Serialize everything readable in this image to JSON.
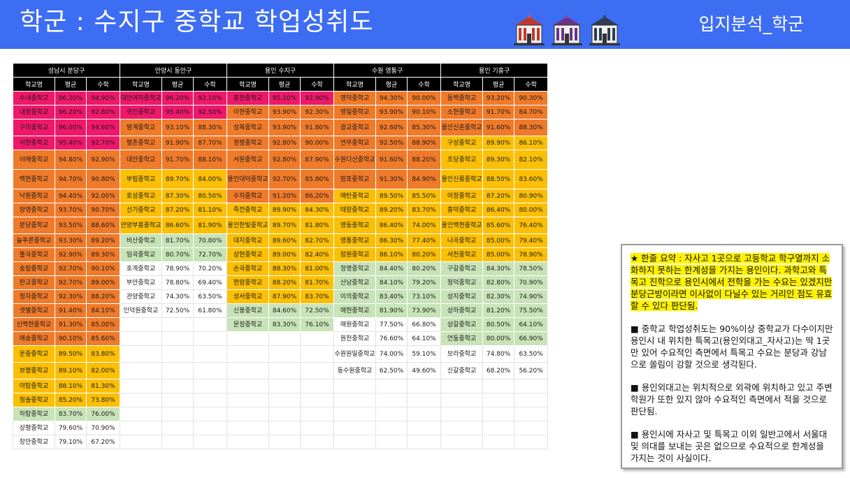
{
  "header": {
    "title": "학군 : 수지구 중학교 학업성취도",
    "subtitle": "입지분석_학군",
    "icons": [
      "school-icon-red",
      "school-icon-purple",
      "school-icon-dark"
    ]
  },
  "colors": {
    "header_bg": "#3d6df2",
    "pink": "#f0186a",
    "orange": "#ef7a2a",
    "yellow": "#fbbf05",
    "green": "#c8e3b8",
    "highlight": "#fff200"
  },
  "table": {
    "column_headers": [
      "학교명",
      "평균",
      "수학"
    ],
    "districts": [
      {
        "name": "성남시 분당구",
        "rows": [
          [
            "수내중학교",
            "96.20%",
            "94.90%",
            "pink"
          ],
          [
            "내정중학교",
            "96.20%",
            "92.80%",
            "pink"
          ],
          [
            "구미중학교",
            "96.00%",
            "94.60%",
            "pink"
          ],
          [
            "서현중학교",
            "95.40%",
            "92.70%",
            "pink"
          ],
          [
            "이매중학교",
            "94.80%",
            "92.90%",
            "org"
          ],
          [
            "백현중학교",
            "94.70%",
            "90.80%",
            "org"
          ],
          [
            "낙원중학교",
            "94.40%",
            "92.00%",
            "org"
          ],
          [
            "양영중학교",
            "93.70%",
            "90.70%",
            "org"
          ],
          [
            "분당중학교",
            "93.50%",
            "88.60%",
            "org"
          ],
          [
            "늘푸른중학교",
            "93.30%",
            "89.20%",
            "org"
          ],
          [
            "불곡중학교",
            "92.90%",
            "89.30%",
            "org"
          ],
          [
            "송림중학교",
            "92.70%",
            "90.10%",
            "org"
          ],
          [
            "판교중학교",
            "92.70%",
            "89.00%",
            "org"
          ],
          [
            "정자중학교",
            "92.30%",
            "88.20%",
            "org"
          ],
          [
            "샛별중학교",
            "91.40%",
            "84.10%",
            "org"
          ],
          [
            "신백현중학교",
            "91.30%",
            "85.00%",
            "org"
          ],
          [
            "매송중학교",
            "90.10%",
            "85.60%",
            "org"
          ],
          [
            "운중중학교",
            "89.50%",
            "83.80%",
            "yel"
          ],
          [
            "보평중학교",
            "89.10%",
            "82.00%",
            "yel"
          ],
          [
            "야탑중학교",
            "88.10%",
            "81.30%",
            "yel"
          ],
          [
            "청솔중학교",
            "85.20%",
            "73.80%",
            "yel"
          ],
          [
            "하탑중학교",
            "83.70%",
            "76.00%",
            "grn"
          ],
          [
            "상평중학교",
            "79.60%",
            "70.90%",
            "wht"
          ],
          [
            "장안중학교",
            "79.10%",
            "67.20%",
            "wht"
          ]
        ]
      },
      {
        "name": "안양시 동안구",
        "rows": [
          [
            "대안여자중학교",
            "96.20%",
            "92.10%",
            "pink"
          ],
          [
            "귀인중학교",
            "95.40%",
            "92.50%",
            "pink"
          ],
          [
            "범계중학교",
            "93.10%",
            "88.30%",
            "org"
          ],
          [
            "평촌중학교",
            "91.90%",
            "87.70%",
            "org"
          ],
          [
            "대안중학교",
            "91.70%",
            "88.10%",
            "org"
          ],
          [
            "부림중학교",
            "89.70%",
            "84.00%",
            "yel"
          ],
          [
            "호성중학교",
            "87.30%",
            "80.50%",
            "yel"
          ],
          [
            "신기중학교",
            "87.20%",
            "81.10%",
            "yel"
          ],
          [
            "안양부흥중학교",
            "86.60%",
            "81.90%",
            "yel"
          ],
          [
            "비산중학교",
            "81.70%",
            "70.80%",
            "grn"
          ],
          [
            "임곡중학교",
            "80.70%",
            "72.70%",
            "grn"
          ],
          [
            "호계중학교",
            "78.90%",
            "70.20%",
            "wht"
          ],
          [
            "부안중학교",
            "78.80%",
            "69.40%",
            "wht"
          ],
          [
            "관양중학교",
            "74.30%",
            "63.50%",
            "wht"
          ],
          [
            "인덕원중학교",
            "72.50%",
            "61.80%",
            "wht"
          ]
        ]
      },
      {
        "name": "용인 수지구",
        "rows": [
          [
            "홍천중학교",
            "95.10%",
            "92.90%",
            "pink"
          ],
          [
            "이현중학교",
            "93.90%",
            "92.30%",
            "org"
          ],
          [
            "성복중학교",
            "93.90%",
            "91.80%",
            "org"
          ],
          [
            "정평중학교",
            "92.80%",
            "90.00%",
            "org"
          ],
          [
            "서원중학교",
            "92.80%",
            "87.90%",
            "org"
          ],
          [
            "용인대덕중학교",
            "92.70%",
            "85.80%",
            "org"
          ],
          [
            "수지중학교",
            "91.20%",
            "86.20%",
            "org"
          ],
          [
            "죽전중학교",
            "89.90%",
            "84.30%",
            "yel"
          ],
          [
            "용인한빛중학교",
            "89.70%",
            "81.80%",
            "yel"
          ],
          [
            "대지중학교",
            "89.60%",
            "82.70%",
            "yel"
          ],
          [
            "상현중학교",
            "89.00%",
            "82.40%",
            "yel"
          ],
          [
            "손곡중학교",
            "88.30%",
            "81.00%",
            "yel"
          ],
          [
            "현암중학교",
            "88.20%",
            "81.70%",
            "yel"
          ],
          [
            "성서중학교",
            "87.90%",
            "83.70%",
            "yel"
          ],
          [
            "신봉중학교",
            "84.60%",
            "72.50%",
            "grn"
          ],
          [
            "문정중학교",
            "83.30%",
            "76.10%",
            "grn"
          ]
        ]
      },
      {
        "name": "수원 영통구",
        "rows": [
          [
            "영덕중학교",
            "94.30%",
            "90.00%",
            "org"
          ],
          [
            "영일중학교",
            "93.90%",
            "90.10%",
            "org"
          ],
          [
            "광교중학교",
            "92.60%",
            "85.30%",
            "org"
          ],
          [
            "연무중학교",
            "92.50%",
            "88.90%",
            "org"
          ],
          [
            "수원다산중학교",
            "91.60%",
            "88.20%",
            "org"
          ],
          [
            "망포중학교",
            "91.30%",
            "84.90%",
            "org"
          ],
          [
            "매탄중학교",
            "89.50%",
            "85.50%",
            "yel"
          ],
          [
            "태장중학교",
            "89.20%",
            "83.70%",
            "yel"
          ],
          [
            "영동중학교",
            "86.40%",
            "74.00%",
            "yel"
          ],
          [
            "영통중학교",
            "86.30%",
            "77.40%",
            "yel"
          ],
          [
            "잠원중학교",
            "86.10%",
            "80.20%",
            "yel"
          ],
          [
            "청명중학교",
            "84.40%",
            "80.20%",
            "grn"
          ],
          [
            "산남중학교",
            "84.10%",
            "79.20%",
            "grn"
          ],
          [
            "이의중학교",
            "83.40%",
            "73.10%",
            "grn"
          ],
          [
            "매현중학교",
            "81.90%",
            "73.90%",
            "grn"
          ],
          [
            "매원중학교",
            "77.50%",
            "66.80%",
            "wht"
          ],
          [
            "원천중학교",
            "76.60%",
            "64.10%",
            "wht"
          ],
          [
            "수원원일중학교",
            "74.00%",
            "59.10%",
            "wht"
          ],
          [
            "동수원중학교",
            "62.50%",
            "49.60%",
            "wht"
          ]
        ]
      },
      {
        "name": "용인 기흥구",
        "rows": [
          [
            "동백중학교",
            "93.20%",
            "90.30%",
            "org"
          ],
          [
            "소현중학교",
            "91.70%",
            "84.70%",
            "org"
          ],
          [
            "용인신촌중학교",
            "91.60%",
            "88.30%",
            "org"
          ],
          [
            "구성중학교",
            "89.90%",
            "86.10%",
            "yel"
          ],
          [
            "초당중학교",
            "89.30%",
            "82.10%",
            "yel"
          ],
          [
            "용인신릉중학교",
            "88.50%",
            "83.60%",
            "yel"
          ],
          [
            "어정중학교",
            "87.20%",
            "80.90%",
            "yel"
          ],
          [
            "흥덕중학교",
            "86.40%",
            "80.00%",
            "yel"
          ],
          [
            "용인백현중학교",
            "85.60%",
            "76.40%",
            "yel"
          ],
          [
            "나곡중학교",
            "85.00%",
            "79.40%",
            "yel"
          ],
          [
            "서천중학교",
            "85.00%",
            "78.90%",
            "yel"
          ],
          [
            "구갈중학교",
            "84.30%",
            "78.50%",
            "grn"
          ],
          [
            "청덕중학교",
            "82.80%",
            "70.90%",
            "grn"
          ],
          [
            "성지중학교",
            "82.30%",
            "74.90%",
            "grn"
          ],
          [
            "상하중학교",
            "81.20%",
            "75.50%",
            "grn"
          ],
          [
            "상갈중학교",
            "80.50%",
            "64.10%",
            "grn"
          ],
          [
            "언동중학교",
            "80.00%",
            "66.90%",
            "grn"
          ],
          [
            "보라중학교",
            "74.80%",
            "63.50%",
            "wht"
          ],
          [
            "신갈중학교",
            "68.20%",
            "56.20%",
            "wht"
          ]
        ]
      }
    ]
  },
  "summary": {
    "highlight": "★ 한줄 요약 : 자사고 1곳으로 고등학교 학구열까지 소화하지 못하는 한계성을 가지는 용인이다. 과학고와 특목고 진학으로 용인시에서 전학을 가는 수요는 있겠지만 분당근방이라면 이사없이 다닐수 있는 거리인 점도 유효할 수 있다 판단됨.",
    "points": [
      "■ 중학교 학업성취도는 90%이상 중학교가 다수이지만 용인시 내 위치한 특목고(용인외대고_자사고)는 딱 1곳만 있어 수요적인 측면에서 특목고 수요는 분당과 강남으로 쏠림이 강할 것으로 생각된다.",
      "■ 용인외대고는 위치적으로 외곽에 위치하고 있고 주변 학원가 또한 있지 않아 수요적인 측면에서 적을 것으로 판단됨.",
      "■ 용인시에 자사고 및 특목고  이외 일반고에서 서울대 및 의대를 보내는 곳은 없으므로 수요적으로 한계성을 가지는 것이 사실이다."
    ]
  }
}
